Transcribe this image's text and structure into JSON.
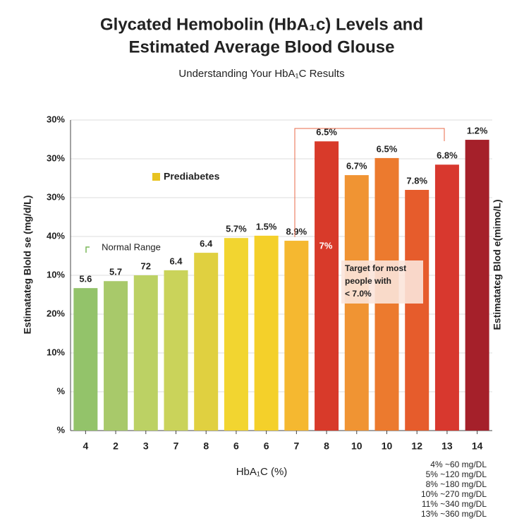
{
  "chart_data": {
    "type": "bar",
    "title_lines": [
      "Glycated Hemobolin (HbA₁c) Levels and",
      "Estimated Average Blood Glouse"
    ],
    "subtitle": "Understanding Your HbA₁C Results",
    "x_label": "HbA₁C (%)",
    "y_label": "Estimatateg Blold se (mg/d/L)",
    "y2_label": "Estimatatєg Blod e(mimo/L)",
    "categories": [
      "4",
      "2",
      "3",
      "7",
      "8",
      "6",
      "6",
      "7",
      "8",
      "10",
      "10",
      "12",
      "13",
      "14"
    ],
    "values": [
      3.67,
      3.85,
      4.0,
      4.13,
      4.58,
      4.96,
      5.02,
      4.89,
      7.45,
      6.58,
      7.02,
      6.2,
      6.85,
      7.49
    ],
    "bar_labels": [
      "5.6",
      "5.7",
      "72",
      "6.4",
      "6.4",
      "5.7%",
      "1.5%",
      "8.9%",
      "6.5%",
      "6.7%",
      "6.5%",
      "7.8%",
      "6.8%",
      "1.2%"
    ],
    "colors": [
      "#93c36a",
      "#a8c96a",
      "#bcd164",
      "#cad35a",
      "#e0d040",
      "#f2d530",
      "#f4d02a",
      "#f5b830",
      "#d83a2a",
      "#f09433",
      "#ec7a2e",
      "#e65c2c",
      "#d8382e",
      "#a5202a"
    ],
    "ylim": [
      0,
      8
    ],
    "yticks": [
      {
        "value": 0,
        "label": "%"
      },
      {
        "value": 1,
        "label": "%"
      },
      {
        "value": 2,
        "label": "10%"
      },
      {
        "value": 3,
        "label": "20%"
      },
      {
        "value": 4,
        "label": "10%"
      },
      {
        "value": 5,
        "label": "40%"
      },
      {
        "value": 6,
        "label": "30%"
      },
      {
        "value": 7,
        "label": "30%"
      },
      {
        "value": 8,
        "label": "30%"
      }
    ],
    "grid": true,
    "annotations": {
      "normal_range": "Normal Range",
      "prediabetes": "Prediabetes",
      "seven": "7%",
      "target": [
        "Target for most",
        "people with",
        "< 7.0%"
      ]
    },
    "conversions": [
      "4%   ~60 mg/DL",
      "5% ~120 mg/DL",
      "8% ~180 mg/DL",
      "10% ~270 mg/DL",
      "11% ~340 mg/DL",
      "13% ~360 mg/DL"
    ]
  }
}
